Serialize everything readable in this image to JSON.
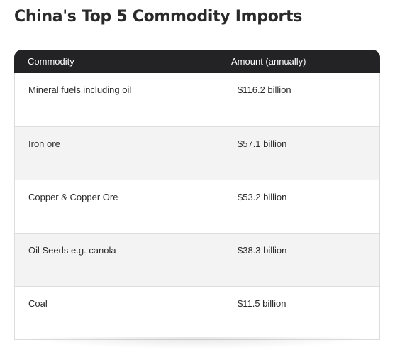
{
  "title": "China's Top 5 Commodity Imports",
  "table": {
    "headers": {
      "commodity": "Commodity",
      "amount": "Amount (annually)"
    },
    "rows": [
      {
        "commodity": "Mineral fuels including oil",
        "amount": "$116.2 billion"
      },
      {
        "commodity": "Iron ore",
        "amount": "$57.1 billion"
      },
      {
        "commodity": "Copper & Copper Ore",
        "amount": "$53.2 billion"
      },
      {
        "commodity": "Oil Seeds e.g. canola",
        "amount": "$38.3 billion"
      },
      {
        "commodity": "Coal",
        "amount": "$11.5 billion"
      }
    ]
  },
  "colors": {
    "header_bg": "#232326",
    "alt_row_bg": "#f3f3f3",
    "text": "#2b2b2b"
  }
}
